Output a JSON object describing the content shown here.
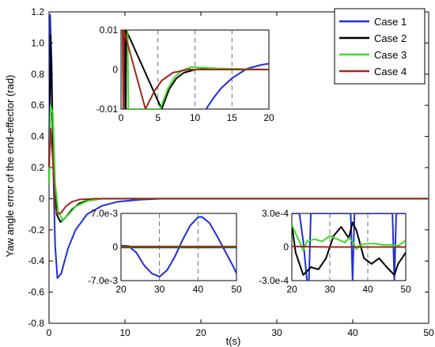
{
  "chart_data": {
    "type": "line",
    "title": "",
    "xlabel": "t(s)",
    "ylabel": "Yaw angle error of the end-effector (rad)",
    "xlim": [
      0,
      50
    ],
    "ylim": [
      -0.8,
      1.2
    ],
    "x_ticks": [
      "0",
      "10",
      "20",
      "30",
      "40",
      "50"
    ],
    "y_ticks": [
      "1.2",
      "1.0",
      "0.8",
      "0.6",
      "0.4",
      "0.2",
      "0",
      "-0.2",
      "-0.4",
      "-0.6",
      "-0.8"
    ],
    "legend_position": "top-right",
    "series": [
      {
        "name": "Case 1",
        "color": "#1f2fd6",
        "x": [
          0,
          0.15,
          0.35,
          0.55,
          0.8,
          1.1,
          1.6,
          2.5,
          3.5,
          5,
          7,
          9,
          12,
          15,
          20,
          50
        ],
        "y": [
          0.2,
          1.18,
          0.85,
          0.2,
          -0.3,
          -0.51,
          -0.48,
          -0.32,
          -0.2,
          -0.1,
          -0.045,
          -0.02,
          -0.006,
          0,
          0,
          0
        ]
      },
      {
        "name": "Case 2",
        "color": "#000000",
        "x": [
          0,
          0.2,
          0.4,
          0.7,
          1.0,
          1.5,
          2.2,
          3.0,
          4.0,
          5,
          7,
          9,
          50
        ],
        "y": [
          0.1,
          1.05,
          0.6,
          0.1,
          -0.1,
          -0.15,
          -0.12,
          -0.07,
          -0.03,
          -0.012,
          0,
          0,
          0
        ]
      },
      {
        "name": "Case 3",
        "color": "#3cdc2a",
        "x": [
          0,
          0.2,
          0.5,
          0.8,
          1.2,
          1.8,
          2.6,
          3.5,
          5,
          7,
          9,
          50
        ],
        "y": [
          0.1,
          0.6,
          0.55,
          0.1,
          -0.08,
          -0.14,
          -0.1,
          -0.05,
          -0.015,
          0,
          0,
          0
        ]
      },
      {
        "name": "Case 4",
        "color": "#a0281e",
        "x": [
          0,
          0.2,
          0.5,
          0.8,
          1.1,
          1.6,
          2.2,
          3.0,
          4.0,
          6,
          50
        ],
        "y": [
          0.2,
          0.45,
          0.25,
          -0.05,
          -0.1,
          -0.09,
          -0.05,
          -0.02,
          -0.005,
          0,
          0
        ]
      }
    ],
    "insets": [
      {
        "xlim": [
          0,
          20
        ],
        "ylim": [
          -0.01,
          0.01
        ],
        "x_ticks": [
          "0",
          "5",
          "10",
          "15",
          "20"
        ],
        "y_ticks": [
          "0.01",
          "0",
          "-0.01"
        ],
        "series": [
          {
            "name": "Case 1",
            "x": [
              11.5,
              12.5,
              13.5,
              15,
              17,
              19,
              20
            ],
            "y": [
              -0.01,
              -0.0072,
              -0.0048,
              -0.0022,
              0.0002,
              0.0012,
              0.0015
            ]
          },
          {
            "name": "Case 2",
            "x": [
              0.5,
              0.6,
              0.65,
              0.7,
              5.5,
              6.5,
              7.5,
              8.5,
              10,
              12,
              14,
              20
            ],
            "y": [
              0.01,
              -0.01,
              -0.01,
              0.01,
              -0.01,
              -0.005,
              -0.0022,
              -0.0008,
              0,
              0.0002,
              0.0001,
              0
            ]
          },
          {
            "name": "Case 3",
            "x": [
              0.9,
              1.0,
              5.3,
              6.3,
              7.3,
              8.3,
              9.5,
              11,
              13,
              20
            ],
            "y": [
              0.01,
              -0.01,
              -0.01,
              -0.005,
              -0.0018,
              -0.0002,
              0.0006,
              0.0005,
              0.0003,
              0
            ]
          },
          {
            "name": "Case 4",
            "x": [
              0.2,
              0.3,
              0.35,
              0.4,
              3.3,
              4.5,
              5.5,
              7,
              9,
              20
            ],
            "y": [
              0.01,
              -0.01,
              -0.01,
              0.01,
              -0.01,
              -0.0055,
              -0.0028,
              -0.0008,
              0,
              0
            ]
          }
        ]
      },
      {
        "xlim": [
          20,
          50
        ],
        "ylim": [
          -0.007,
          0.007
        ],
        "x_ticks": [
          "20",
          "30",
          "40",
          "50"
        ],
        "y_ticks": [
          "7.0e-3",
          "0",
          "-7.0e-3"
        ],
        "series": [
          {
            "name": "Case 1",
            "x": [
              20,
              22,
              24,
              26,
              28,
              30,
              32,
              34,
              36,
              38,
              40,
              41,
              43,
              45,
              47,
              49,
              50
            ],
            "y": [
              0.0003,
              0.0002,
              -0.0012,
              -0.0038,
              -0.0055,
              -0.0062,
              -0.0048,
              -0.002,
              0.0015,
              0.0045,
              0.0062,
              0.0063,
              0.005,
              0.0022,
              -0.0008,
              -0.0038,
              -0.0055
            ]
          },
          {
            "name": "Case 2",
            "x": [
              20,
              50
            ],
            "y": [
              -0.0001,
              -0.0001
            ]
          },
          {
            "name": "Case 3",
            "x": [
              20,
              50
            ],
            "y": [
              0,
              0
            ]
          },
          {
            "name": "Case 4",
            "x": [
              20,
              50
            ],
            "y": [
              0.0001,
              0.0001
            ]
          }
        ]
      },
      {
        "xlim": [
          20,
          50
        ],
        "ylim": [
          -0.0003,
          0.0003
        ],
        "x_ticks": [
          "20",
          "30",
          "40",
          "50"
        ],
        "y_ticks": [
          "3.0e-4",
          "0",
          "-3.0e-4"
        ],
        "series": [
          {
            "name": "Case 1",
            "x": [
              20,
              22,
              23,
              24,
              24.5,
              25,
              35.5,
              36,
              36.5,
              46.5,
              47,
              47.5,
              50
            ],
            "y": [
              0.0003,
              0.0003,
              5e-05,
              -0.0003,
              -0.0003,
              0.0003,
              0.0003,
              -0.0003,
              0.0003,
              0.0003,
              -0.0003,
              0.0003,
              0.0003
            ]
          },
          {
            "name": "Case 2",
            "x": [
              20,
              21,
              23,
              25,
              27,
              29,
              31,
              33,
              35,
              36,
              37,
              39,
              41,
              43,
              45,
              47,
              48,
              50
            ],
            "y": [
              0.0002,
              -5e-05,
              -0.00025,
              -0.00018,
              -0.0002,
              -0.0001,
              0.0001,
              0.00018,
              8e-05,
              0.00022,
              0.00015,
              -0.0001,
              -0.00015,
              -0.0001,
              -0.00018,
              -0.00025,
              -0.00015,
              -5e-05
            ]
          },
          {
            "name": "Case 3",
            "x": [
              20,
              21,
              22,
              23,
              24,
              26,
              28,
              30,
              32,
              34,
              35,
              36,
              37,
              38,
              40,
              42,
              44,
              46,
              48,
              50
            ],
            "y": [
              0.0002,
              0.00012,
              5e-05,
              -3e-05,
              5e-05,
              7e-05,
              5e-05,
              0.0001,
              7e-05,
              4e-05,
              8e-05,
              5e-05,
              -2e-05,
              2e-05,
              3e-05,
              3e-05,
              2e-05,
              2e-05,
              1e-05,
              6e-05
            ]
          },
          {
            "name": "Case 4",
            "x": [
              20,
              30,
              40,
              50
            ],
            "y": [
              5e-06,
              0,
              0,
              0
            ]
          }
        ]
      }
    ]
  }
}
